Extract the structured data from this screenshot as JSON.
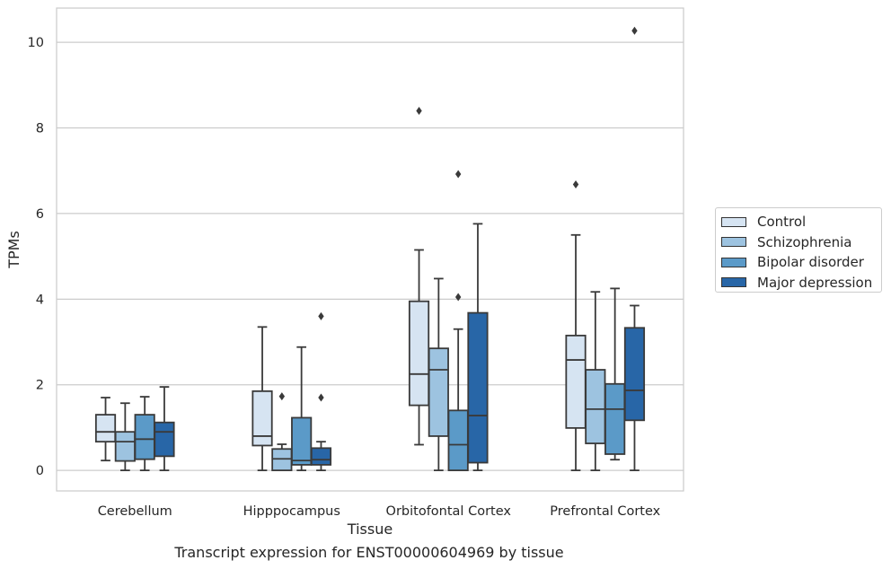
{
  "chart_data": {
    "type": "box",
    "title": "",
    "xlabel": "Tissue",
    "ylabel": "TPMs",
    "ylim": [
      -0.48,
      10.8
    ],
    "yticks": [
      0,
      2,
      4,
      6,
      8,
      10
    ],
    "grid": true,
    "legend_position": "right",
    "categories": [
      "Cerebellum",
      "Hipppocampus",
      "Orbitofontal Cortex",
      "Prefrontal Cortex"
    ],
    "series": [
      {
        "name": "Control",
        "color": "#d6e4f2",
        "boxes": [
          {
            "whislo": 0.23,
            "q1": 0.67,
            "med": 0.9,
            "q3": 1.3,
            "whishi": 1.7,
            "fliers": []
          },
          {
            "whislo": 0.0,
            "q1": 0.58,
            "med": 0.8,
            "q3": 1.85,
            "whishi": 3.35,
            "fliers": []
          },
          {
            "whislo": 0.6,
            "q1": 1.52,
            "med": 2.25,
            "q3": 3.95,
            "whishi": 5.15,
            "fliers": [
              8.4
            ]
          },
          {
            "whislo": 0.0,
            "q1": 0.99,
            "med": 2.58,
            "q3": 3.15,
            "whishi": 5.5,
            "fliers": [
              6.68
            ]
          }
        ]
      },
      {
        "name": "Schizophrenia",
        "color": "#9dc3e0",
        "boxes": [
          {
            "whislo": 0.0,
            "q1": 0.22,
            "med": 0.67,
            "q3": 0.9,
            "whishi": 1.57,
            "fliers": []
          },
          {
            "whislo": 0.0,
            "q1": 0.0,
            "med": 0.27,
            "q3": 0.5,
            "whishi": 0.61,
            "fliers": [
              1.73
            ]
          },
          {
            "whislo": 0.0,
            "q1": 0.8,
            "med": 2.35,
            "q3": 2.85,
            "whishi": 4.48,
            "fliers": []
          },
          {
            "whislo": 0.0,
            "q1": 0.63,
            "med": 1.43,
            "q3": 2.35,
            "whishi": 4.17,
            "fliers": []
          }
        ]
      },
      {
        "name": "Bipolar disorder",
        "color": "#5b9ac8",
        "boxes": [
          {
            "whislo": 0.0,
            "q1": 0.26,
            "med": 0.73,
            "q3": 1.3,
            "whishi": 1.72,
            "fliers": []
          },
          {
            "whislo": 0.0,
            "q1": 0.13,
            "med": 0.23,
            "q3": 1.23,
            "whishi": 2.88,
            "fliers": []
          },
          {
            "whislo": 0.0,
            "q1": 0.0,
            "med": 0.6,
            "q3": 1.4,
            "whishi": 3.3,
            "fliers": [
              4.05,
              6.92
            ]
          },
          {
            "whislo": 0.25,
            "q1": 0.38,
            "med": 1.43,
            "q3": 2.02,
            "whishi": 4.25,
            "fliers": []
          }
        ]
      },
      {
        "name": "Major depression",
        "color": "#2866a7",
        "boxes": [
          {
            "whislo": 0.0,
            "q1": 0.33,
            "med": 0.9,
            "q3": 1.12,
            "whishi": 1.95,
            "fliers": []
          },
          {
            "whislo": 0.0,
            "q1": 0.13,
            "med": 0.25,
            "q3": 0.52,
            "whishi": 0.67,
            "fliers": [
              1.7,
              3.6
            ]
          },
          {
            "whislo": 0.0,
            "q1": 0.18,
            "med": 1.28,
            "q3": 3.68,
            "whishi": 5.76,
            "fliers": []
          },
          {
            "whislo": 0.0,
            "q1": 1.17,
            "med": 1.87,
            "q3": 3.33,
            "whishi": 3.85,
            "fliers": [
              10.27
            ]
          }
        ]
      }
    ],
    "caption": "Transcript expression for ENST00000604969 by tissue"
  }
}
